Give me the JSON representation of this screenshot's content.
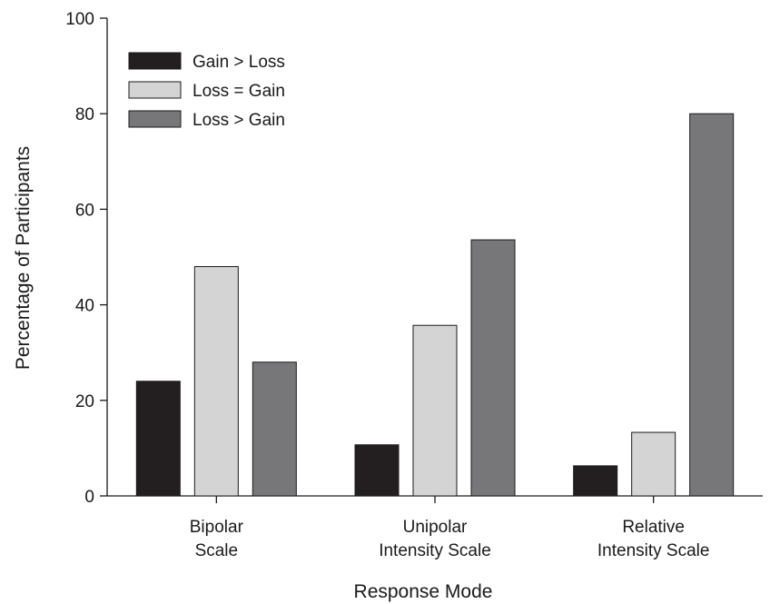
{
  "chart_data": {
    "type": "bar",
    "title": "",
    "xlabel": "Response Mode",
    "ylabel": "Percentage of Participants",
    "ylim": [
      0,
      100
    ],
    "yticks": [
      0,
      20,
      40,
      60,
      80,
      100
    ],
    "grid": false,
    "legend_position": "top-left",
    "categories": [
      [
        "Bipolar",
        "Scale"
      ],
      [
        "Unipolar",
        "Intensity Scale"
      ],
      [
        "Relative",
        "Intensity Scale"
      ]
    ],
    "series": [
      {
        "name": "Gain > Loss",
        "color": "#231f20",
        "values": [
          24,
          10.7,
          6.3
        ]
      },
      {
        "name": "Loss = Gain",
        "color": "#d4d4d4",
        "values": [
          48,
          35.7,
          13.3
        ]
      },
      {
        "name": "Loss > Gain",
        "color": "#77777a",
        "values": [
          28,
          53.6,
          80
        ]
      }
    ]
  }
}
